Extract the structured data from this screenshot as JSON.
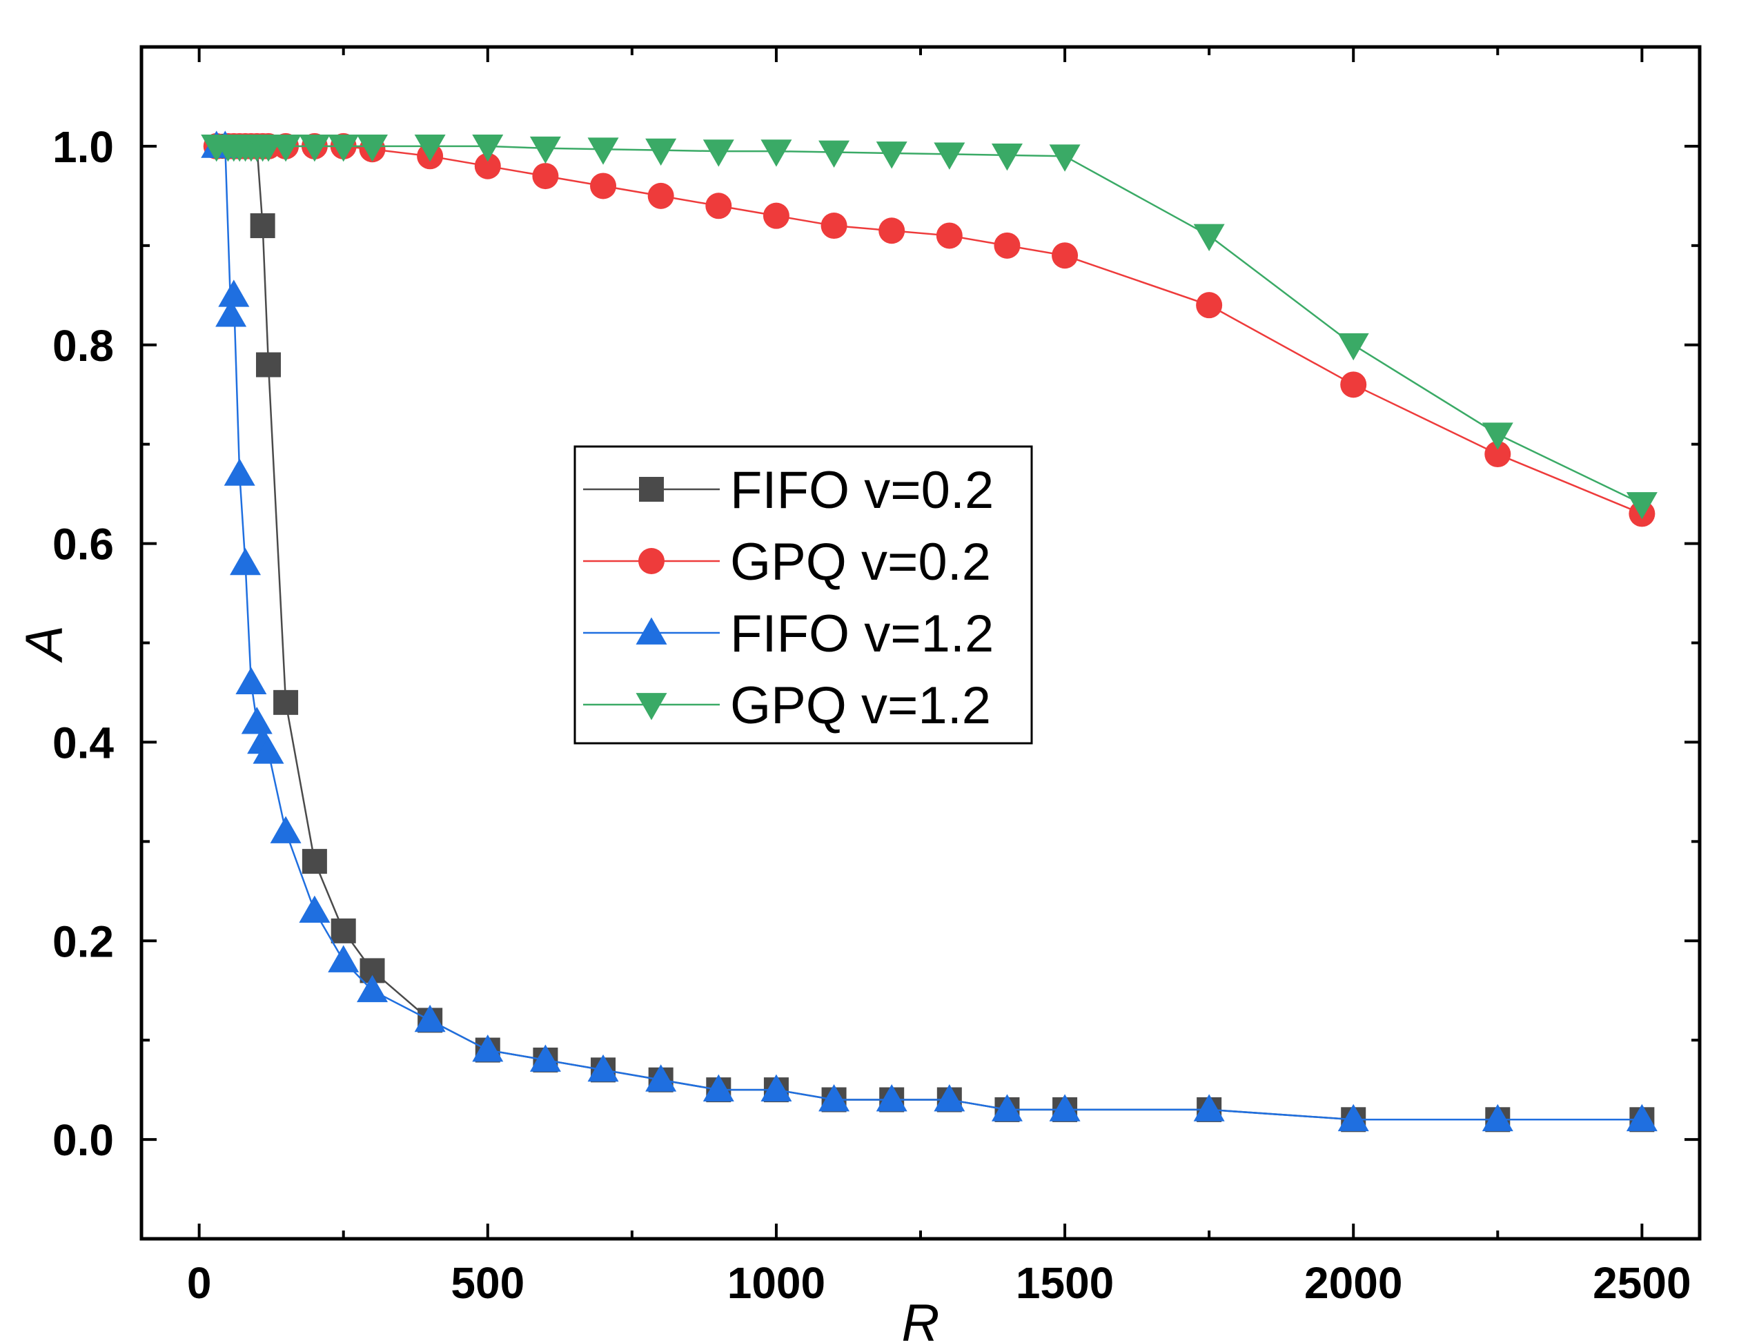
{
  "chart_data": {
    "type": "line",
    "title": "",
    "xlabel": "R",
    "ylabel": "A",
    "xlim": [
      -100,
      2600
    ],
    "ylim": [
      -0.1,
      1.1
    ],
    "x_ticks": [
      0,
      500,
      1000,
      1500,
      2000,
      2500
    ],
    "x_tick_labels": [
      "0",
      "500",
      "1000",
      "1500",
      "2000",
      "2500"
    ],
    "y_ticks": [
      0.0,
      0.2,
      0.4,
      0.6,
      0.8,
      1.0
    ],
    "y_tick_labels": [
      "0.0",
      "0.2",
      "0.4",
      "0.6",
      "0.8",
      "1.0"
    ],
    "legend_position": "center",
    "grid": false,
    "series": [
      {
        "name": "FIFO v=0.2",
        "color": "#4a4a4a",
        "marker": "square",
        "x": [
          50,
          60,
          70,
          80,
          90,
          100,
          110,
          120,
          150,
          200,
          250,
          300,
          400,
          500,
          600,
          700,
          800,
          900,
          1000,
          1100,
          1200,
          1300,
          1400,
          1500,
          1750,
          2000,
          2250,
          2500
        ],
        "y": [
          1.0,
          1.0,
          1.0,
          1.0,
          1.0,
          1.0,
          0.92,
          0.78,
          0.44,
          0.28,
          0.21,
          0.17,
          0.12,
          0.09,
          0.08,
          0.07,
          0.06,
          0.05,
          0.05,
          0.04,
          0.04,
          0.04,
          0.03,
          0.03,
          0.03,
          0.02,
          0.02,
          0.02
        ]
      },
      {
        "name": "GPQ v=0.2",
        "color": "#ee3b3b",
        "marker": "circle",
        "x": [
          30,
          50,
          60,
          70,
          80,
          90,
          100,
          110,
          120,
          150,
          200,
          250,
          300,
          400,
          500,
          600,
          700,
          800,
          900,
          1000,
          1100,
          1200,
          1300,
          1400,
          1500,
          1750,
          2000,
          2250,
          2500
        ],
        "y": [
          1.0,
          1.0,
          1.0,
          1.0,
          1.0,
          1.0,
          1.0,
          1.0,
          1.0,
          1.0,
          1.0,
          1.0,
          0.997,
          0.99,
          0.98,
          0.97,
          0.96,
          0.95,
          0.94,
          0.93,
          0.92,
          0.915,
          0.91,
          0.9,
          0.89,
          0.84,
          0.76,
          0.69,
          0.63
        ]
      },
      {
        "name": "FIFO v=1.2",
        "color": "#1f6fe0",
        "marker": "triangle-up",
        "x": [
          30,
          45,
          55,
          60,
          70,
          80,
          90,
          100,
          110,
          120,
          150,
          200,
          250,
          300,
          400,
          500,
          600,
          700,
          800,
          900,
          1000,
          1100,
          1200,
          1300,
          1400,
          1500,
          1750,
          2000,
          2250,
          2500
        ],
        "y": [
          1.0,
          1.0,
          0.83,
          0.85,
          0.67,
          0.58,
          0.46,
          0.42,
          0.4,
          0.39,
          0.31,
          0.23,
          0.18,
          0.15,
          0.12,
          0.09,
          0.08,
          0.07,
          0.06,
          0.05,
          0.05,
          0.04,
          0.04,
          0.04,
          0.03,
          0.03,
          0.03,
          0.02,
          0.02,
          0.02
        ]
      },
      {
        "name": "GPQ v=1.2",
        "color": "#3aaa66",
        "marker": "triangle-down",
        "x": [
          30,
          50,
          60,
          70,
          80,
          90,
          100,
          110,
          120,
          150,
          200,
          250,
          300,
          400,
          500,
          600,
          700,
          800,
          900,
          1000,
          1100,
          1200,
          1300,
          1400,
          1500,
          1750,
          2000,
          2250,
          2500
        ],
        "y": [
          1.0,
          1.0,
          1.0,
          1.0,
          1.0,
          1.0,
          1.0,
          1.0,
          1.0,
          1.0,
          1.0,
          1.0,
          1.0,
          1.0,
          1.0,
          0.998,
          0.997,
          0.996,
          0.995,
          0.995,
          0.994,
          0.993,
          0.992,
          0.991,
          0.99,
          0.91,
          0.8,
          0.71,
          0.64
        ]
      }
    ]
  }
}
